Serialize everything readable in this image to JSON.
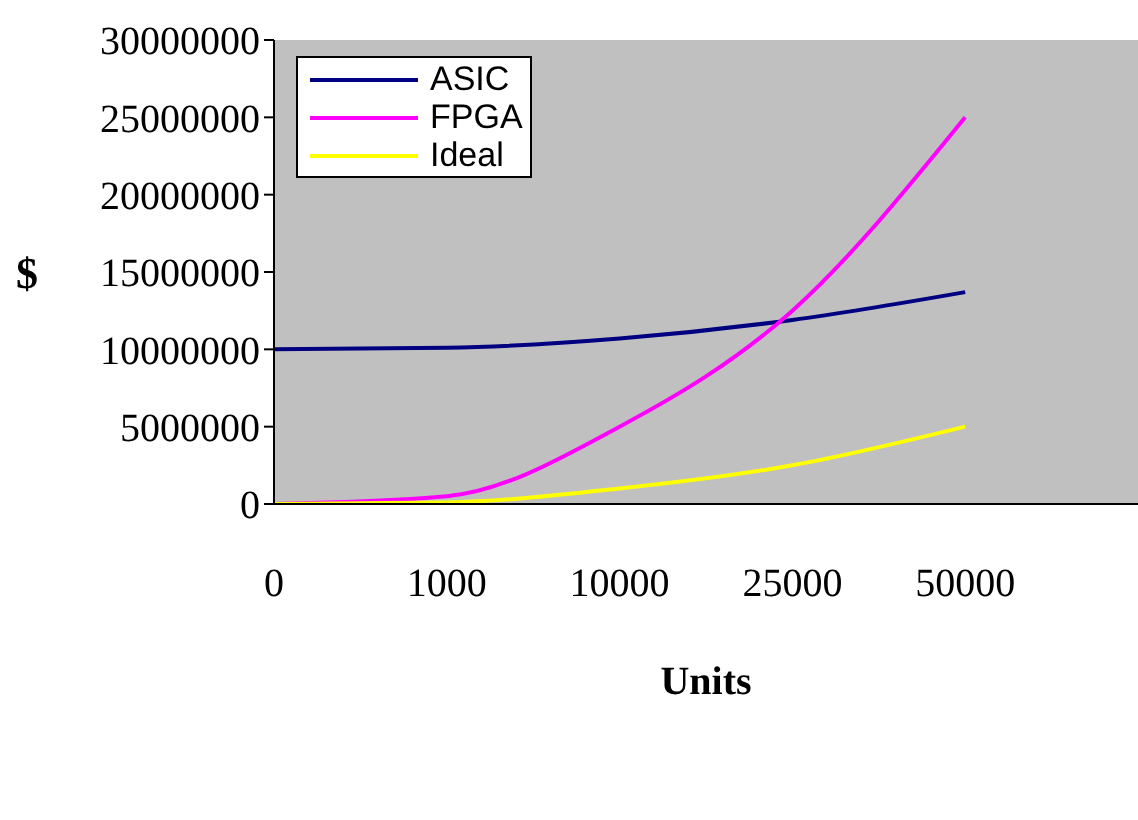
{
  "chart_data": {
    "type": "line",
    "xlabel": "Units",
    "ylabel": "$",
    "categories": [
      "0",
      "1000",
      "10000",
      "25000",
      "50000",
      null
    ],
    "series": [
      {
        "name": "ASIC",
        "color": "#000080",
        "values": [
          10000000,
          10100000,
          10700000,
          11900000,
          13700000,
          null
        ]
      },
      {
        "name": "FPGA",
        "color": "#ff00ff",
        "values": [
          0,
          500000,
          5000000,
          12500000,
          25000000,
          null
        ]
      },
      {
        "name": "Ideal",
        "color": "#ffff00",
        "values": [
          0,
          100000,
          1000000,
          2500000,
          5000000,
          null
        ]
      }
    ],
    "ylim": [
      0,
      30000000
    ],
    "yticks": [
      0,
      5000000,
      10000000,
      15000000,
      20000000,
      25000000,
      30000000
    ],
    "legend": "top left",
    "marker": "none",
    "line_style": "solid"
  }
}
